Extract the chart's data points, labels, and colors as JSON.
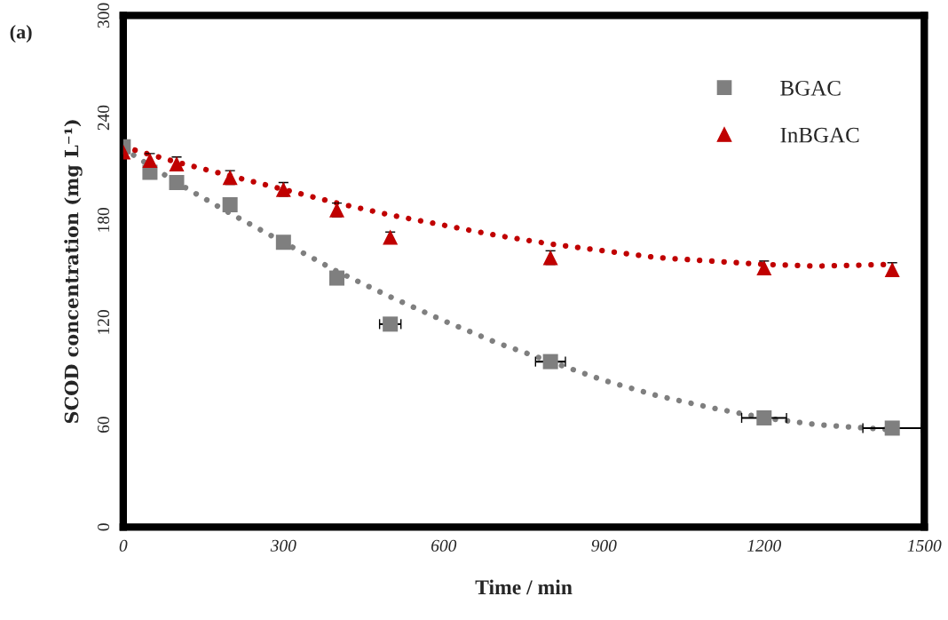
{
  "chart_data": {
    "type": "scatter",
    "title": "(a)",
    "xlabel": "Time / min",
    "ylabel": "SCOD concentration (mg L⁻¹)",
    "xlim": [
      0,
      1500
    ],
    "xticks": [
      0,
      300,
      600,
      900,
      1200,
      1500
    ],
    "ylim": [
      0,
      300
    ],
    "yticks": [
      0,
      60,
      120,
      180,
      240,
      300
    ],
    "grid": false,
    "legend": "top right",
    "series": [
      {
        "type": "line",
        "color": "#7f7f7f",
        "line_style": "dotted",
        "marker": "none",
        "x": [
          0,
          100,
          200,
          300,
          400,
          500,
          600,
          700,
          800,
          900,
          1000,
          1100,
          1200,
          1300,
          1440
        ],
        "values": [
          222,
          202,
          184,
          167,
          150,
          135,
          121,
          108,
          97,
          86,
          77,
          70,
          64,
          60,
          57
        ]
      },
      {
        "type": "line",
        "color": "#c00000",
        "line_style": "dotted",
        "marker": "none",
        "x": [
          0,
          100,
          200,
          300,
          400,
          500,
          600,
          700,
          800,
          900,
          1000,
          1100,
          1200,
          1300,
          1440
        ],
        "values": [
          223,
          214,
          206,
          198,
          190,
          183,
          177,
          171,
          166,
          162,
          158,
          156,
          154,
          153,
          154
        ]
      },
      {
        "name": "BGAC",
        "color": "#7f7f7f",
        "marker": "square",
        "x": [
          0,
          50,
          100,
          200,
          300,
          400,
          500,
          800,
          1200,
          1440
        ],
        "values": [
          223,
          208,
          202,
          189,
          167,
          146,
          119,
          97,
          64,
          58
        ],
        "xerrors": [
          null,
          null,
          null,
          null,
          null,
          12,
          20,
          28,
          42,
          55
        ]
      },
      {
        "name": "InBGAC",
        "color": "#c00000",
        "marker": "triangle",
        "x": [
          0,
          50,
          100,
          200,
          300,
          400,
          500,
          800,
          1200,
          1440
        ],
        "values": [
          220,
          215,
          213,
          205,
          198,
          186,
          170,
          158,
          152,
          151
        ],
        "errors": [
          null,
          4,
          4,
          4,
          4,
          4,
          3,
          4,
          4,
          4
        ]
      }
    ]
  }
}
